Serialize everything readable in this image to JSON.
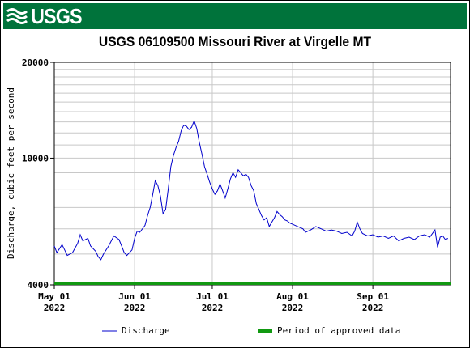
{
  "header": {
    "logo_text": "USGS"
  },
  "chart_data": {
    "type": "line",
    "title": "USGS 06109500 Missouri River at Virgelle MT",
    "ylabel": "Discharge, cubic feet per second",
    "xlabel": "",
    "y_scale": "log",
    "ylim": [
      4000,
      20000
    ],
    "y_ticks": [
      {
        "value": 4000,
        "label": "4000"
      },
      {
        "value": 10000,
        "label": "10000"
      },
      {
        "value": 20000,
        "label": "20000"
      }
    ],
    "x_range": [
      "2022-05-01",
      "2022-09-30"
    ],
    "x_ticks": [
      {
        "date": "2022-05-01",
        "label1": "May 01",
        "label2": "2022"
      },
      {
        "date": "2022-06-01",
        "label1": "Jun 01",
        "label2": "2022"
      },
      {
        "date": "2022-07-01",
        "label1": "Jul 01",
        "label2": "2022"
      },
      {
        "date": "2022-08-01",
        "label1": "Aug 01",
        "label2": "2022"
      },
      {
        "date": "2022-09-01",
        "label1": "Sep 01",
        "label2": "2022"
      }
    ],
    "grid": true,
    "legend_position": "bottom",
    "series": [
      {
        "name": "Discharge",
        "color": "#0000cc",
        "points": [
          [
            "2022-05-01",
            5300
          ],
          [
            "2022-05-02",
            5050
          ],
          [
            "2022-05-04",
            5350
          ],
          [
            "2022-05-05",
            5150
          ],
          [
            "2022-05-06",
            4950
          ],
          [
            "2022-05-08",
            5050
          ],
          [
            "2022-05-10",
            5400
          ],
          [
            "2022-05-11",
            5750
          ],
          [
            "2022-05-12",
            5500
          ],
          [
            "2022-05-14",
            5600
          ],
          [
            "2022-05-15",
            5300
          ],
          [
            "2022-05-17",
            5100
          ],
          [
            "2022-05-18",
            4900
          ],
          [
            "2022-05-19",
            4800
          ],
          [
            "2022-05-20",
            5000
          ],
          [
            "2022-05-22",
            5300
          ],
          [
            "2022-05-24",
            5700
          ],
          [
            "2022-05-26",
            5550
          ],
          [
            "2022-05-27",
            5300
          ],
          [
            "2022-05-28",
            5050
          ],
          [
            "2022-05-29",
            4950
          ],
          [
            "2022-05-31",
            5150
          ],
          [
            "2022-06-01",
            5600
          ],
          [
            "2022-06-02",
            5900
          ],
          [
            "2022-06-03",
            5850
          ],
          [
            "2022-06-05",
            6150
          ],
          [
            "2022-06-06",
            6600
          ],
          [
            "2022-06-07",
            7000
          ],
          [
            "2022-06-08",
            7700
          ],
          [
            "2022-06-09",
            8500
          ],
          [
            "2022-06-10",
            8200
          ],
          [
            "2022-06-11",
            7600
          ],
          [
            "2022-06-12",
            6700
          ],
          [
            "2022-06-13",
            6900
          ],
          [
            "2022-06-14",
            8000
          ],
          [
            "2022-06-15",
            9400
          ],
          [
            "2022-06-16",
            10200
          ],
          [
            "2022-06-17",
            10800
          ],
          [
            "2022-06-18",
            11300
          ],
          [
            "2022-06-19",
            12200
          ],
          [
            "2022-06-20",
            12700
          ],
          [
            "2022-06-21",
            12600
          ],
          [
            "2022-06-22",
            12300
          ],
          [
            "2022-06-23",
            12500
          ],
          [
            "2022-06-24",
            13100
          ],
          [
            "2022-06-25",
            12400
          ],
          [
            "2022-06-26",
            11200
          ],
          [
            "2022-06-27",
            10300
          ],
          [
            "2022-06-28",
            9400
          ],
          [
            "2022-06-29",
            8900
          ],
          [
            "2022-06-30",
            8400
          ],
          [
            "2022-07-01",
            8000
          ],
          [
            "2022-07-02",
            7700
          ],
          [
            "2022-07-03",
            7900
          ],
          [
            "2022-07-04",
            8300
          ],
          [
            "2022-07-05",
            7900
          ],
          [
            "2022-07-06",
            7500
          ],
          [
            "2022-07-07",
            8000
          ],
          [
            "2022-07-08",
            8600
          ],
          [
            "2022-07-09",
            9000
          ],
          [
            "2022-07-10",
            8700
          ],
          [
            "2022-07-11",
            9200
          ],
          [
            "2022-07-12",
            9000
          ],
          [
            "2022-07-13",
            8800
          ],
          [
            "2022-07-14",
            8900
          ],
          [
            "2022-07-15",
            8700
          ],
          [
            "2022-07-16",
            8200
          ],
          [
            "2022-07-17",
            7900
          ],
          [
            "2022-07-18",
            7200
          ],
          [
            "2022-07-19",
            6900
          ],
          [
            "2022-07-20",
            6600
          ],
          [
            "2022-07-21",
            6400
          ],
          [
            "2022-07-22",
            6500
          ],
          [
            "2022-07-23",
            6100
          ],
          [
            "2022-07-24",
            6300
          ],
          [
            "2022-07-25",
            6500
          ],
          [
            "2022-07-26",
            6800
          ],
          [
            "2022-07-27",
            6650
          ],
          [
            "2022-07-28",
            6550
          ],
          [
            "2022-07-29",
            6400
          ],
          [
            "2022-07-30",
            6350
          ],
          [
            "2022-07-31",
            6250
          ],
          [
            "2022-08-01",
            6200
          ],
          [
            "2022-08-03",
            6100
          ],
          [
            "2022-08-05",
            6000
          ],
          [
            "2022-08-06",
            5850
          ],
          [
            "2022-08-08",
            5950
          ],
          [
            "2022-08-10",
            6100
          ],
          [
            "2022-08-12",
            6000
          ],
          [
            "2022-08-14",
            5900
          ],
          [
            "2022-08-16",
            5950
          ],
          [
            "2022-08-18",
            5900
          ],
          [
            "2022-08-20",
            5800
          ],
          [
            "2022-08-22",
            5850
          ],
          [
            "2022-08-24",
            5700
          ],
          [
            "2022-08-25",
            5900
          ],
          [
            "2022-08-26",
            6300
          ],
          [
            "2022-08-27",
            6000
          ],
          [
            "2022-08-28",
            5800
          ],
          [
            "2022-08-30",
            5700
          ],
          [
            "2022-09-01",
            5750
          ],
          [
            "2022-09-03",
            5650
          ],
          [
            "2022-09-05",
            5700
          ],
          [
            "2022-09-07",
            5600
          ],
          [
            "2022-09-09",
            5700
          ],
          [
            "2022-09-11",
            5500
          ],
          [
            "2022-09-13",
            5600
          ],
          [
            "2022-09-15",
            5650
          ],
          [
            "2022-09-17",
            5550
          ],
          [
            "2022-09-19",
            5700
          ],
          [
            "2022-09-21",
            5750
          ],
          [
            "2022-09-23",
            5650
          ],
          [
            "2022-09-25",
            5950
          ],
          [
            "2022-09-26",
            5250
          ],
          [
            "2022-09-27",
            5650
          ],
          [
            "2022-09-28",
            5700
          ],
          [
            "2022-09-29",
            5550
          ],
          [
            "2022-09-30",
            5600
          ]
        ]
      },
      {
        "name": "Period of approved data",
        "color": "#119911",
        "start": "2022-05-01",
        "end": "2022-09-30"
      }
    ]
  }
}
